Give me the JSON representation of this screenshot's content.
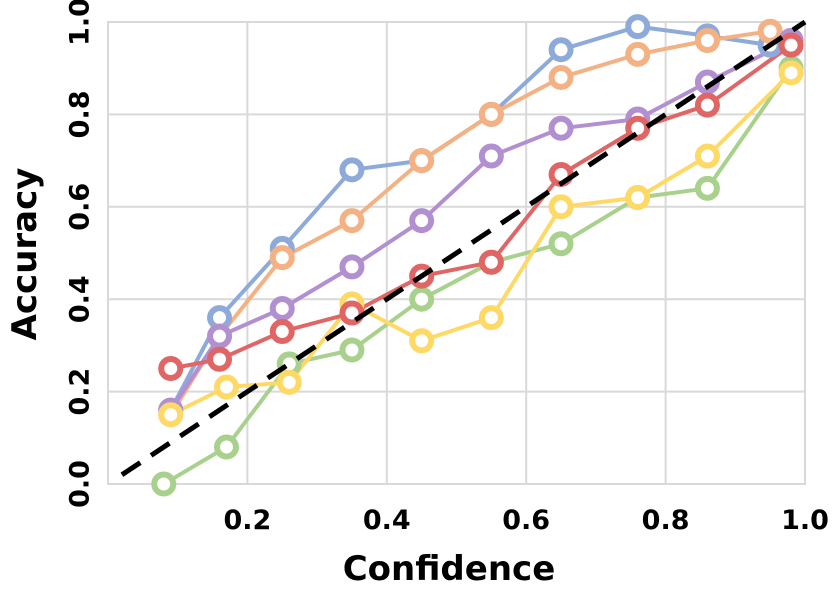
{
  "chart_data": {
    "type": "line",
    "title": "",
    "xlabel": "Confidence",
    "ylabel": "Accuracy",
    "xlim": [
      0.0,
      1.0
    ],
    "ylim": [
      0.0,
      1.0
    ],
    "grid": true,
    "xticks": [
      0.2,
      0.4,
      0.6,
      0.8,
      1.0
    ],
    "xtick_labels": [
      "0.2",
      "0.4",
      "0.6",
      "0.8",
      "1.0"
    ],
    "yticks": [
      0.0,
      0.2,
      0.4,
      0.6,
      0.8,
      1.0
    ],
    "ytick_labels": [
      "0.0",
      "0.2",
      "0.4",
      "0.6",
      "0.8",
      "1.0"
    ],
    "reference": {
      "name": "perfect-calibration",
      "x": [
        0.02,
        1.0
      ],
      "y": [
        0.02,
        1.0
      ],
      "color": "#000000",
      "dashed": true
    },
    "series": [
      {
        "name": "blue",
        "color": "#8eaadb",
        "x": [
          0.09,
          0.16,
          0.25,
          0.35,
          0.45,
          0.55,
          0.65,
          0.76,
          0.86,
          0.95,
          0.98
        ],
        "y": [
          0.16,
          0.36,
          0.51,
          0.68,
          0.7,
          0.8,
          0.94,
          0.99,
          0.97,
          0.95,
          0.96
        ]
      },
      {
        "name": "orange",
        "color": "#f4b183",
        "x": [
          0.09,
          0.16,
          0.25,
          0.35,
          0.45,
          0.55,
          0.65,
          0.76,
          0.86,
          0.95,
          0.98
        ],
        "y": [
          0.15,
          0.32,
          0.49,
          0.57,
          0.7,
          0.8,
          0.88,
          0.93,
          0.96,
          0.98,
          0.96
        ]
      },
      {
        "name": "purple",
        "color": "#b18fd1",
        "x": [
          0.09,
          0.16,
          0.25,
          0.35,
          0.45,
          0.55,
          0.65,
          0.76,
          0.86,
          0.98
        ],
        "y": [
          0.16,
          0.32,
          0.38,
          0.47,
          0.57,
          0.71,
          0.77,
          0.79,
          0.87,
          0.96
        ]
      },
      {
        "name": "green",
        "color": "#a9d18e",
        "x": [
          0.08,
          0.17,
          0.26,
          0.35,
          0.45,
          0.55,
          0.65,
          0.76,
          0.86,
          0.98
        ],
        "y": [
          0.0,
          0.08,
          0.26,
          0.29,
          0.4,
          0.48,
          0.52,
          0.62,
          0.64,
          0.9
        ]
      },
      {
        "name": "yellow",
        "color": "#ffd966",
        "x": [
          0.09,
          0.17,
          0.26,
          0.35,
          0.45,
          0.55,
          0.65,
          0.76,
          0.86,
          0.98
        ],
        "y": [
          0.15,
          0.21,
          0.22,
          0.39,
          0.31,
          0.36,
          0.6,
          0.62,
          0.71,
          0.89
        ]
      },
      {
        "name": "red",
        "color": "#e06666",
        "x": [
          0.09,
          0.16,
          0.25,
          0.35,
          0.45,
          0.55,
          0.65,
          0.76,
          0.86,
          0.98
        ],
        "y": [
          0.25,
          0.27,
          0.33,
          0.37,
          0.45,
          0.48,
          0.67,
          0.77,
          0.82,
          0.95
        ]
      }
    ]
  }
}
